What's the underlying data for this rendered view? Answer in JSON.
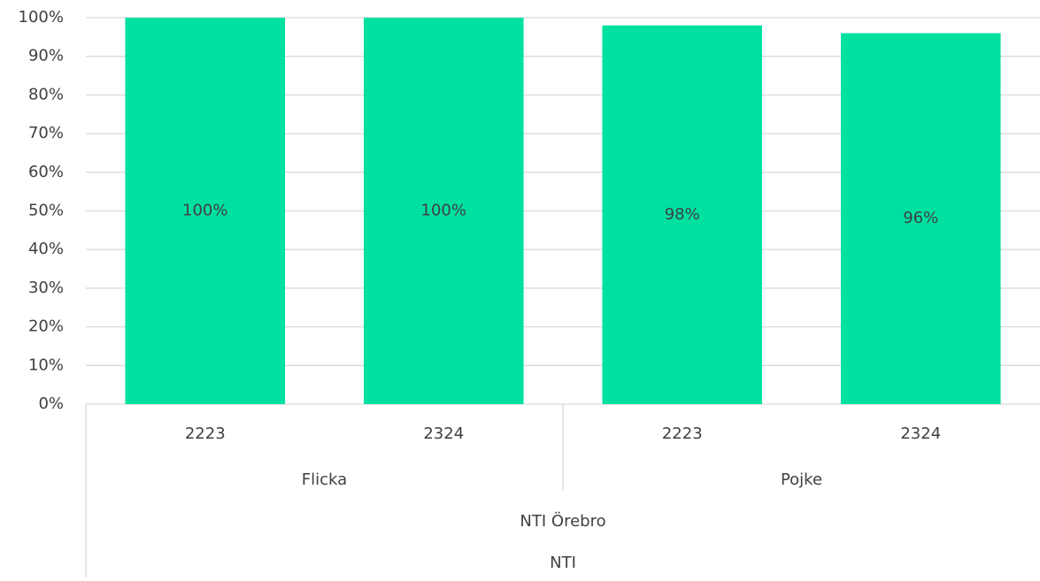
{
  "chart_data": {
    "type": "bar",
    "categories": [
      "2223",
      "2324",
      "2223",
      "2324"
    ],
    "category_levels": [
      [
        "Flicka",
        "Pojke"
      ],
      [
        "NTI Örebro"
      ],
      [
        "NTI"
      ]
    ],
    "values": [
      100,
      100,
      98,
      96
    ],
    "value_labels": [
      "100%",
      "100%",
      "98%",
      "96%"
    ],
    "color": "#00e0a0",
    "ylim": [
      0,
      100
    ],
    "yticks": [
      {
        "value": 0,
        "label": "0%"
      },
      {
        "value": 10,
        "label": "10%"
      },
      {
        "value": 20,
        "label": "20%"
      },
      {
        "value": 30,
        "label": "30%"
      },
      {
        "value": 40,
        "label": "40%"
      },
      {
        "value": 50,
        "label": "50%"
      },
      {
        "value": 60,
        "label": "60%"
      },
      {
        "value": 70,
        "label": "70%"
      },
      {
        "value": 80,
        "label": "80%"
      },
      {
        "value": 90,
        "label": "90%"
      },
      {
        "value": 100,
        "label": "100%"
      }
    ],
    "grid": true
  }
}
